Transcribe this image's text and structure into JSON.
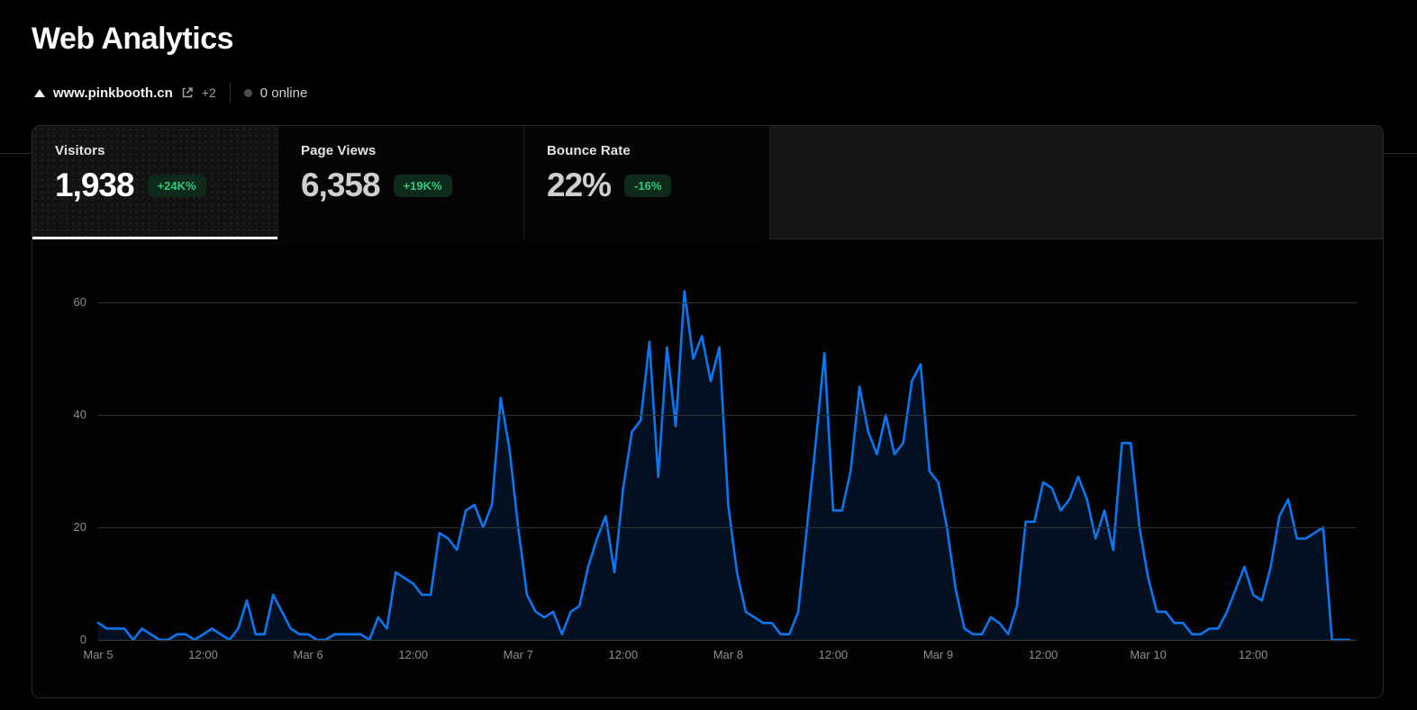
{
  "page": {
    "title": "Web Analytics"
  },
  "domain_bar": {
    "domain": "www.pinkbooth.cn",
    "extra_count": "+2",
    "online_label": "0 online"
  },
  "stats": [
    {
      "label": "Visitors",
      "value": "1,938",
      "badge": "+24K%",
      "selected": true
    },
    {
      "label": "Page Views",
      "value": "6,358",
      "badge": "+19K%",
      "selected": false
    },
    {
      "label": "Bounce Rate",
      "value": "22%",
      "badge": "-16%",
      "selected": false
    }
  ],
  "colors": {
    "accent_blue": "#0b76f2",
    "area_fill": "rgba(0,112,243,0.13)",
    "badge_green_text": "#30c97f",
    "badge_green_bg": "#0e2a1b",
    "grid": "#313131",
    "axis_text": "#8d8d8d"
  },
  "chart_data": {
    "type": "area",
    "series_label": "Visitors",
    "x_start": "Mar 5 00:00",
    "x_interval_hours": 1,
    "x_tick_every_hours": 12,
    "x_tick_labels": [
      "Mar 5",
      "12:00",
      "Mar 6",
      "12:00",
      "Mar 7",
      "12:00",
      "Mar 8",
      "12:00",
      "Mar 9",
      "12:00",
      "Mar 10",
      "12:00"
    ],
    "y_ticks": [
      0,
      20,
      40,
      60
    ],
    "ylim": [
      0,
      64
    ],
    "grid": true,
    "series": [
      {
        "name": "Visitors",
        "color": "#0b76f2",
        "values": [
          3,
          2,
          2,
          2,
          0,
          2,
          1,
          0,
          0,
          1,
          1,
          0,
          1,
          2,
          1,
          0,
          2,
          7,
          1,
          1,
          8,
          5,
          2,
          1,
          1,
          0,
          0,
          1,
          1,
          1,
          1,
          0,
          4,
          2,
          12,
          11,
          10,
          8,
          8,
          19,
          18,
          16,
          23,
          24,
          20,
          24,
          43,
          34,
          20,
          8,
          5,
          4,
          5,
          1,
          5,
          6,
          13,
          18,
          22,
          12,
          27,
          37,
          39,
          53,
          29,
          52,
          38,
          62,
          50,
          54,
          46,
          52,
          24,
          12,
          5,
          4,
          3,
          3,
          1,
          1,
          5,
          20,
          35,
          51,
          23,
          23,
          30,
          45,
          37,
          33,
          40,
          33,
          35,
          46,
          49,
          30,
          28,
          20,
          9,
          2,
          1,
          1,
          4,
          3,
          1,
          6,
          21,
          21,
          28,
          27,
          23,
          25,
          29,
          25,
          18,
          23,
          16,
          35,
          35,
          20,
          11,
          5,
          5,
          3,
          3,
          1,
          1,
          2,
          2,
          5,
          9,
          13,
          8,
          7,
          13,
          22,
          25,
          18,
          18,
          19,
          20,
          0,
          0,
          0
        ]
      }
    ]
  }
}
